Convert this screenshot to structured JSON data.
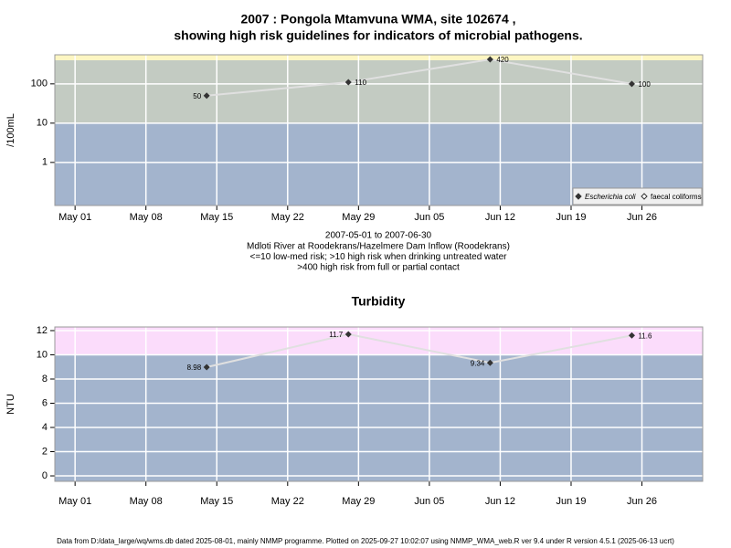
{
  "chart_data": [
    {
      "type": "line",
      "title": [
        "2007 : Pongola Mtamvuna WMA, site 102674 ,",
        "showing high risk guidelines for indicators of microbial pathogens."
      ],
      "y_label": "/100mL",
      "log": true,
      "x": [
        "May 14",
        "May 28",
        "Jun 11",
        "Jun 25"
      ],
      "xlim": [
        "Apr 29",
        "Jul 02"
      ],
      "xticks": [
        "May 01",
        "May 08",
        "May 15",
        "May 22",
        "May 29",
        "Jun 05",
        "Jun 12",
        "Jun 19",
        "Jun 26"
      ],
      "ylim": [
        0.08,
        550
      ],
      "yticks": [
        1,
        10,
        100
      ],
      "grid": true,
      "legend": "bottom-right",
      "bands": [
        {
          "to": 10,
          "color": "#a3b4cd"
        },
        {
          "from": 10,
          "to": 400,
          "color": "#c3cbc2"
        },
        {
          "from": 400,
          "color": "#fdf6c2"
        }
      ],
      "series": [
        {
          "name": "Escherichia coli",
          "color": "#333333",
          "line_color": "#e0e0e0",
          "values": [
            50,
            110,
            420,
            100
          ]
        },
        {
          "name": "faecal coliforms",
          "color": "#333333",
          "line_color": "#e0e0e0",
          "values": [
            null,
            null,
            null,
            null
          ]
        }
      ],
      "notes": [
        "2007-05-01 to 2007-06-30",
        "Mdloti River at Roodekrans/Hazelmere Dam Inflow (Roodekrans)",
        "<=10 low-med risk; >10 high risk when drinking untreated water",
        ">400 high risk from full or partial contact"
      ]
    },
    {
      "type": "line",
      "title": [
        "Turbidity"
      ],
      "y_label": "NTU",
      "log": false,
      "x": [
        "May 14",
        "May 28",
        "Jun 11",
        "Jun 25"
      ],
      "xlim": [
        "Apr 29",
        "Jul 02"
      ],
      "xticks": [
        "May 01",
        "May 08",
        "May 15",
        "May 22",
        "May 29",
        "Jun 05",
        "Jun 12",
        "Jun 19",
        "Jun 26"
      ],
      "ylim": [
        -0.45,
        12.3
      ],
      "yticks": [
        0,
        2,
        4,
        6,
        8,
        10,
        12
      ],
      "grid": true,
      "bands": [
        {
          "to": 10,
          "color": "#a3b4cd"
        },
        {
          "from": 10,
          "color": "#fbdcfb"
        }
      ],
      "series": [
        {
          "name": "Turbidity",
          "color": "#333333",
          "line_color": "#e0e0e0",
          "values": [
            8.98,
            11.7,
            9.34,
            11.6
          ]
        }
      ]
    }
  ],
  "footer": "Data from D:/data_large/wq/wms.db dated 2025-08-01, mainly NMMP programme. Plotted on 2025-09-27 10:02:07 using NMMP_WMA_web.R ver 9.4 under R version 4.5.1 (2025-06-13 ucrt)"
}
